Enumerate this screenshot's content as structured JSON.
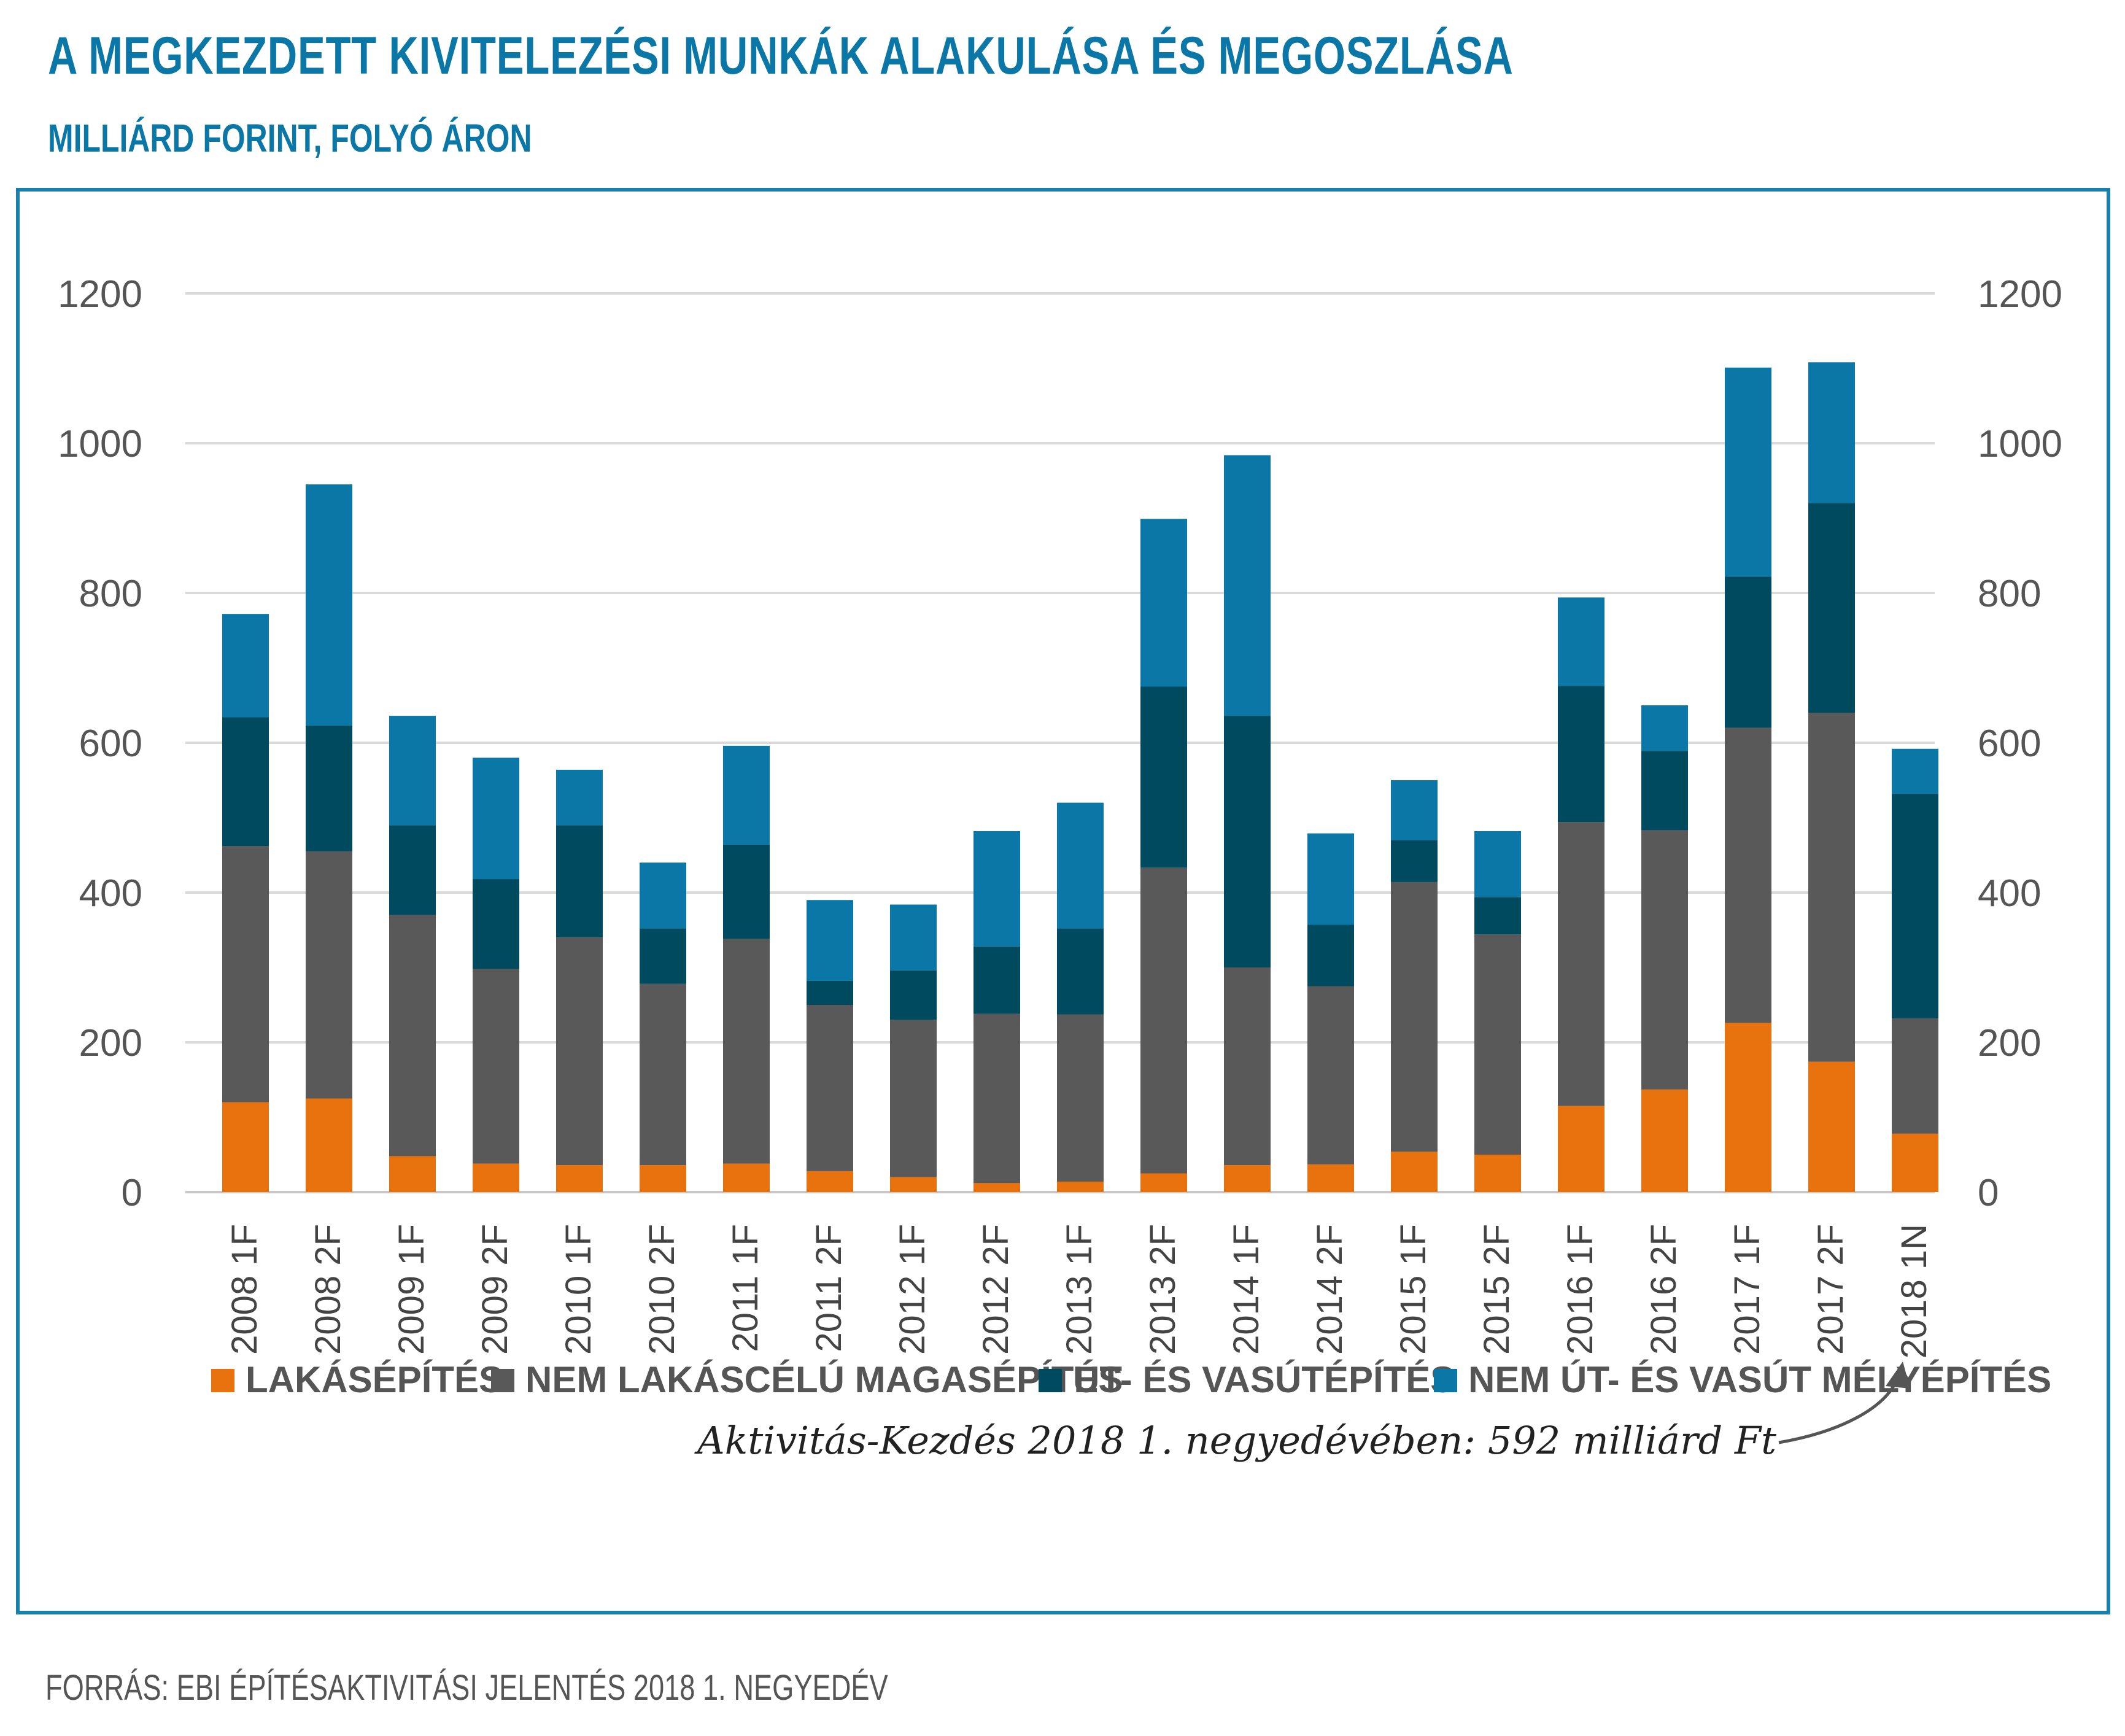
{
  "title": "A MEGKEZDETT KIVITELEZÉSI MUNKÁK ALAKULÁSA ÉS MEGOSZLÁSA",
  "subtitle": "MILLIÁRD FORINT, FOLYÓ ÁRON",
  "source": "FORRÁS: EBI ÉPÍTÉSAKTIVITÁSI JELENTÉS 2018 1. NEGYEDÉV",
  "annotation": "Aktivitás-Kezdés 2018 1. negyedévében: 592 milliárd Ft",
  "chart_data": {
    "type": "bar",
    "stacked": true,
    "categories": [
      "2008 1F",
      "2008 2F",
      "2009 1F",
      "2009 2F",
      "2010 1F",
      "2010 2F",
      "2011 1F",
      "2011 2F",
      "2012 1F",
      "2012 2F",
      "2013 1F",
      "2013 2F",
      "2014 1F",
      "2014 2F",
      "2015 1F",
      "2015 2F",
      "2016 1F",
      "2016 2F",
      "2017 1F",
      "2017 2F",
      "2018 1N"
    ],
    "series": [
      {
        "name": "LAKÁSÉPÍTÉS",
        "color": "#e8730e",
        "values": [
          120,
          125,
          48,
          38,
          36,
          36,
          38,
          28,
          20,
          12,
          14,
          25,
          36,
          37,
          54,
          50,
          115,
          137,
          226,
          174,
          78
        ]
      },
      {
        "name": "NEM LAKÁSCÉLÚ MAGASÉPÍTÉS",
        "color": "#595959",
        "values": [
          342,
          330,
          322,
          260,
          304,
          242,
          300,
          222,
          210,
          226,
          223,
          408,
          264,
          238,
          360,
          294,
          379,
          346,
          394,
          466,
          154
        ]
      },
      {
        "name": "ÚT- ÉS VASÚTÉPÍTÉS",
        "color": "#004a5f",
        "values": [
          172,
          168,
          120,
          120,
          150,
          74,
          126,
          32,
          66,
          90,
          115,
          242,
          336,
          82,
          56,
          50,
          182,
          106,
          202,
          280,
          300
        ]
      },
      {
        "name": "NEM ÚT- ÉS VASÚT MÉLYÉPÍTÉS",
        "color": "#0a77a6",
        "values": [
          138,
          322,
          146,
          162,
          74,
          88,
          132,
          108,
          88,
          154,
          168,
          224,
          348,
          122,
          80,
          88,
          118,
          61,
          279,
          188,
          60
        ]
      }
    ],
    "yticks": [
      0,
      200,
      400,
      600,
      800,
      1000,
      1200
    ],
    "ylim": [
      0,
      1200
    ],
    "grid": true,
    "legend_position": "bottom",
    "xlabel": "",
    "ylabel": ""
  }
}
